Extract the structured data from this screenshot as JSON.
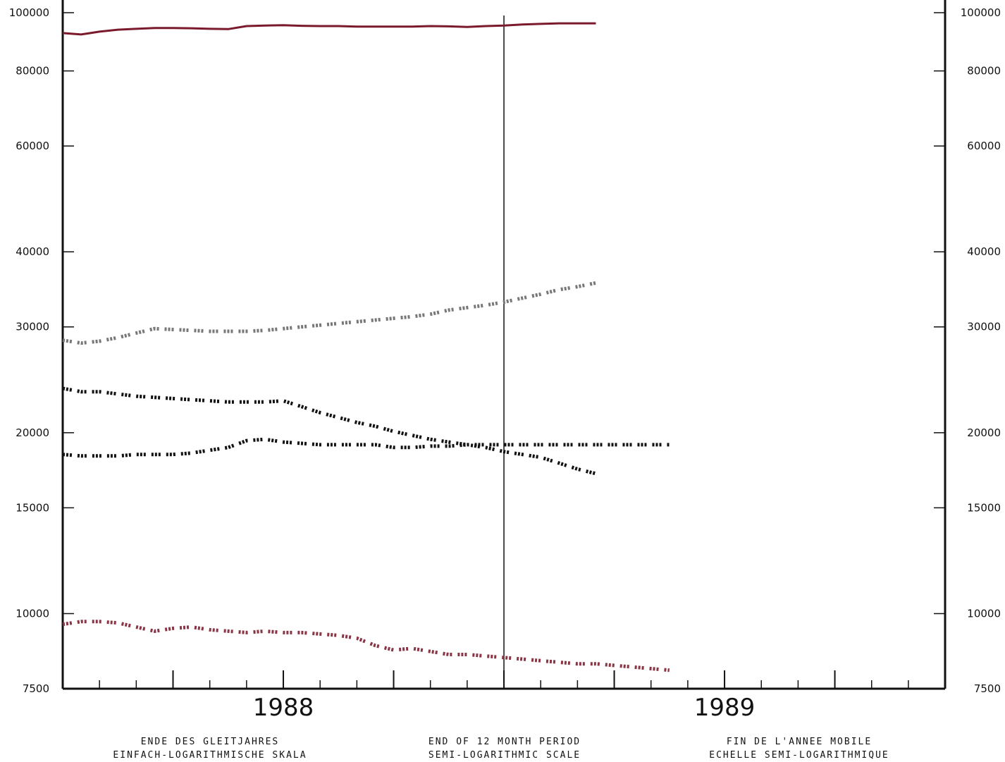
{
  "chart_data": {
    "type": "line",
    "title": "",
    "y_scale": "log",
    "ylim": [
      7500,
      100000
    ],
    "yticks": [
      7500,
      10000,
      15000,
      20000,
      30000,
      40000,
      60000,
      80000,
      100000
    ],
    "xlim": [
      0,
      24
    ],
    "x_units": "months since January 1988",
    "x_ticks": [
      1988,
      1989
    ],
    "grid": false,
    "legend": "none",
    "reference_line": {
      "x": 12,
      "color": "#111111"
    },
    "series": [
      {
        "style": "solid",
        "color": "#7a1a2c",
        "x": [
          0,
          0.5,
          1,
          1.5,
          2,
          2.5,
          3,
          3.5,
          4,
          4.5,
          5,
          5.5,
          6,
          6.5,
          7,
          7.5,
          8,
          8.5,
          9,
          9.5,
          10,
          10.5,
          11,
          11.5,
          12,
          12.5,
          13,
          13.5,
          14,
          14.5
        ],
        "values": [
          92500,
          92000,
          93000,
          93700,
          94000,
          94300,
          94300,
          94200,
          94000,
          93900,
          95000,
          95200,
          95300,
          95100,
          95000,
          95000,
          94800,
          94800,
          94800,
          94800,
          95000,
          94900,
          94700,
          95000,
          95200,
          95600,
          95800,
          96000,
          96000,
          96000
        ]
      },
      {
        "style": "dotted",
        "color": "#777777",
        "x": [
          0,
          0.5,
          1,
          1.5,
          2,
          2.5,
          3,
          3.5,
          4,
          4.5,
          5,
          5.5,
          6,
          6.5,
          7,
          7.5,
          8,
          8.5,
          9,
          9.5,
          10,
          10.5,
          11,
          11.5,
          12,
          12.5,
          13,
          13.5,
          14,
          14.5
        ],
        "values": [
          28500,
          28200,
          28400,
          28800,
          29300,
          29800,
          29700,
          29600,
          29500,
          29500,
          29500,
          29600,
          29800,
          30000,
          30200,
          30400,
          30600,
          30800,
          31000,
          31200,
          31500,
          32000,
          32300,
          32600,
          33000,
          33500,
          34000,
          34600,
          35000,
          35500
        ]
      },
      {
        "style": "dotted",
        "color": "#111111",
        "x": [
          0,
          0.5,
          1,
          1.5,
          2,
          2.5,
          3,
          3.5,
          4,
          4.5,
          5,
          5.5,
          6,
          6.5,
          7,
          7.5,
          8,
          8.5,
          9,
          9.5,
          10,
          10.5,
          11,
          11.5,
          12,
          12.5,
          13,
          13.5,
          14,
          14.5
        ],
        "values": [
          23700,
          23400,
          23400,
          23200,
          23000,
          22900,
          22800,
          22700,
          22600,
          22500,
          22500,
          22500,
          22600,
          22100,
          21600,
          21200,
          20800,
          20500,
          20100,
          19800,
          19500,
          19300,
          19100,
          18900,
          18600,
          18400,
          18200,
          17800,
          17400,
          17100
        ]
      },
      {
        "style": "dotted",
        "color": "#111111",
        "x": [
          0,
          0.5,
          1,
          1.5,
          2,
          2.5,
          3,
          3.5,
          4,
          4.5,
          5,
          5.5,
          6,
          6.5,
          7,
          7.5,
          8,
          8.5,
          9,
          9.5,
          10,
          10.5,
          11,
          11.5,
          12,
          12.5,
          13,
          13.5,
          14,
          14.5,
          15,
          15.5,
          16,
          16.5
        ],
        "values": [
          18400,
          18300,
          18300,
          18300,
          18400,
          18400,
          18400,
          18500,
          18700,
          18900,
          19400,
          19500,
          19300,
          19200,
          19100,
          19100,
          19100,
          19100,
          18900,
          18900,
          19000,
          19000,
          19100,
          19100,
          19100,
          19100,
          19100,
          19100,
          19100,
          19100,
          19100,
          19100,
          19100,
          19100
        ]
      },
      {
        "style": "dotted",
        "color": "#8a3545",
        "x": [
          0,
          0.5,
          1,
          1.5,
          2,
          2.5,
          3,
          3.5,
          4,
          4.5,
          5,
          5.5,
          6,
          6.5,
          7,
          7.5,
          8,
          8.5,
          9,
          9.5,
          10,
          10.5,
          11,
          11.5,
          12,
          12.5,
          13,
          13.5,
          14,
          14.5,
          15,
          15.5,
          16,
          16.5
        ],
        "values": [
          9600,
          9700,
          9700,
          9650,
          9500,
          9350,
          9450,
          9500,
          9400,
          9350,
          9300,
          9350,
          9300,
          9300,
          9250,
          9200,
          9100,
          8850,
          8700,
          8750,
          8650,
          8550,
          8550,
          8500,
          8450,
          8400,
          8350,
          8300,
          8250,
          8250,
          8200,
          8150,
          8100,
          8050
        ]
      }
    ]
  },
  "axis_labels": {
    "left_ticks": [
      "7500",
      "10000",
      "15000",
      "20000",
      "30000",
      "40000",
      "60000",
      "80000",
      "100000"
    ],
    "right_ticks": [
      "7500",
      "10000",
      "15000",
      "20000",
      "30000",
      "40000",
      "60000",
      "80000",
      "100000"
    ],
    "years": [
      "1988",
      "1989"
    ]
  },
  "captions": {
    "german": [
      "ENDE DES GLEITJAHRES",
      "EINFACH-LOGARITHMISCHE SKALA"
    ],
    "english": [
      "END OF 12 MONTH PERIOD",
      "SEMI-LOGARITHMIC SCALE"
    ],
    "french": [
      "FIN DE L'ANNEE MOBILE",
      "ECHELLE SEMI-LOGARITHMIQUE"
    ]
  }
}
